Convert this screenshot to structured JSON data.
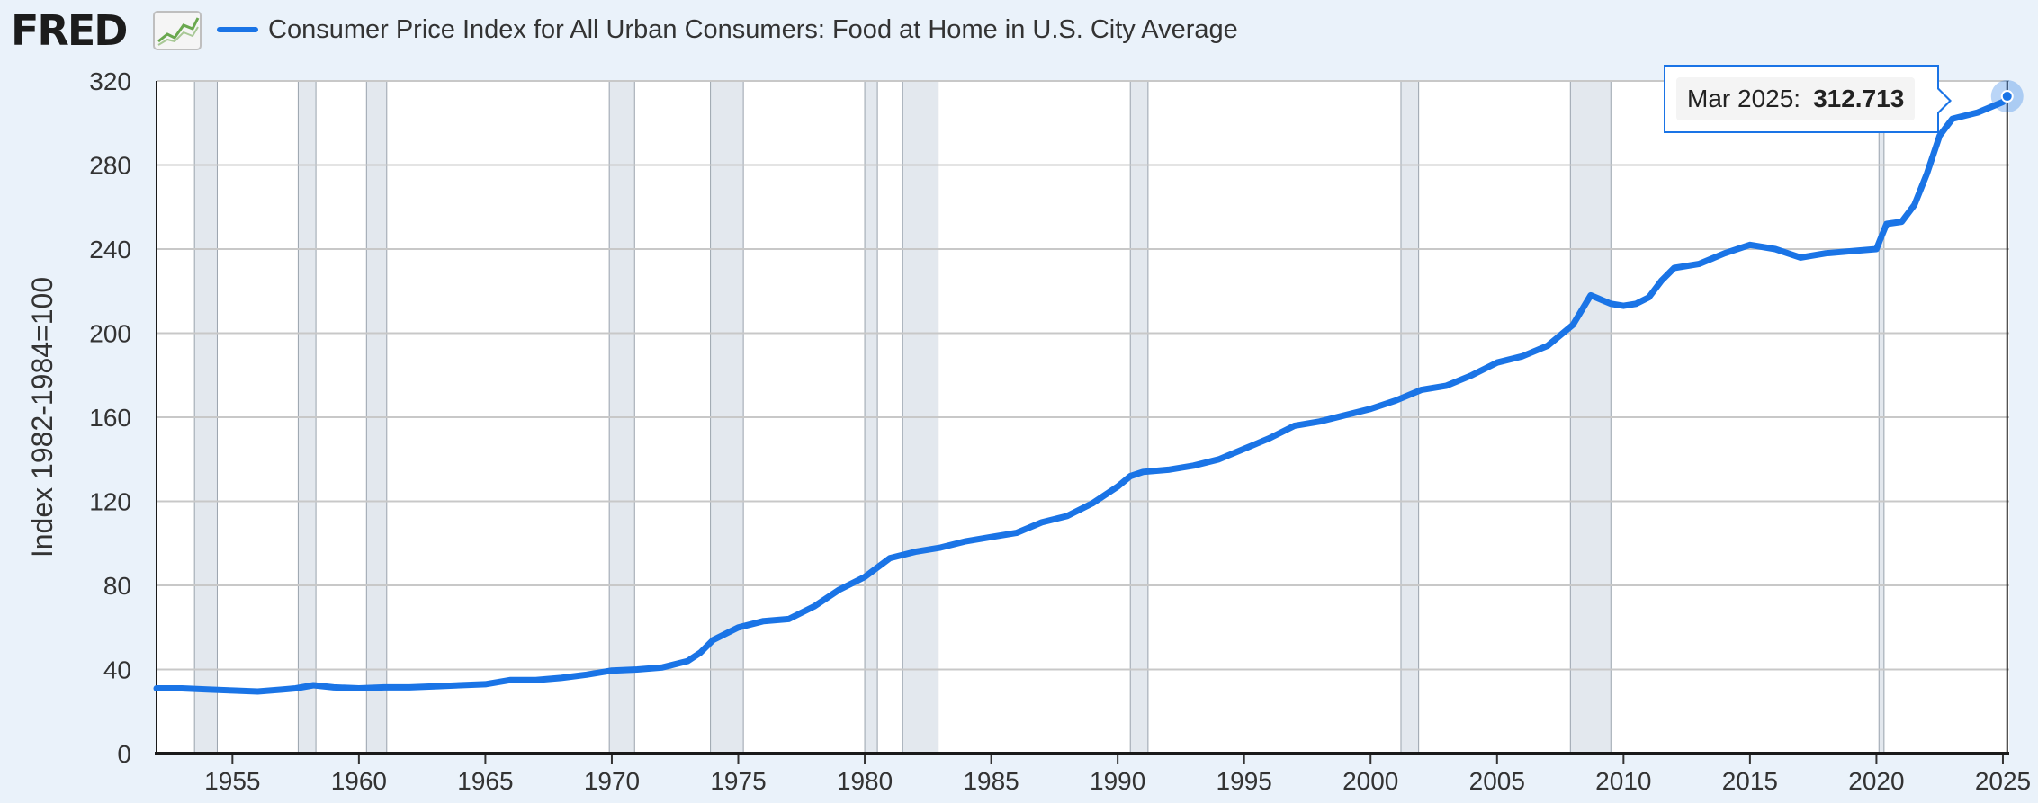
{
  "header": {
    "logo_text": "FRED",
    "logo_mark": "fred-chart-icon",
    "series_title": "Consumer Price Index for All Urban Consumers: Food at Home in U.S. City Average",
    "series_color": "#1a74e6"
  },
  "tooltip": {
    "date": "Mar 2025:",
    "value": "312.713"
  },
  "colors": {
    "line": "#1a74e6",
    "recession": "#e3e8ee",
    "plot_bg": "#ffffff",
    "grid": "#c8c8c8",
    "page_bg": "#eaf2fa"
  },
  "chart_data": {
    "type": "line",
    "title": "Consumer Price Index for All Urban Consumers: Food at Home in U.S. City Average",
    "xlabel": "",
    "ylabel": "Index 1982-1984=100",
    "xlim": [
      1952.0,
      2025.25
    ],
    "ylim": [
      0,
      320
    ],
    "x_ticks": [
      "1955",
      "1960",
      "1965",
      "1970",
      "1975",
      "1980",
      "1985",
      "1990",
      "1995",
      "2000",
      "2005",
      "2010",
      "2015",
      "2020",
      "2025"
    ],
    "y_ticks": [
      "0",
      "40",
      "80",
      "120",
      "160",
      "200",
      "240",
      "280",
      "320"
    ],
    "grid": true,
    "recession_periods": [
      [
        1953.5,
        1954.4
      ],
      [
        1957.6,
        1958.3
      ],
      [
        1960.3,
        1961.1
      ],
      [
        1969.9,
        1970.9
      ],
      [
        1973.9,
        1975.2
      ],
      [
        1980.0,
        1980.5
      ],
      [
        1981.5,
        1982.9
      ],
      [
        1990.5,
        1991.2
      ],
      [
        2001.2,
        2001.9
      ],
      [
        2007.9,
        2009.5
      ],
      [
        2020.1,
        2020.3
      ]
    ],
    "series": [
      {
        "name": "Consumer Price Index for All Urban Consumers: Food at Home in U.S. City Average",
        "x": [
          1952.0,
          1953.0,
          1954.0,
          1955.0,
          1956.0,
          1957.0,
          1957.5,
          1958.2,
          1959.0,
          1960.0,
          1961.0,
          1962.0,
          1963.0,
          1964.0,
          1965.0,
          1966.0,
          1967.0,
          1968.0,
          1969.0,
          1970.0,
          1971.0,
          1972.0,
          1973.0,
          1973.5,
          1974.0,
          1975.0,
          1976.0,
          1977.0,
          1978.0,
          1979.0,
          1980.0,
          1981.0,
          1982.0,
          1983.0,
          1984.0,
          1985.0,
          1986.0,
          1987.0,
          1988.0,
          1989.0,
          1990.0,
          1990.5,
          1991.0,
          1992.0,
          1993.0,
          1994.0,
          1995.0,
          1996.0,
          1997.0,
          1998.0,
          1999.0,
          2000.0,
          2001.0,
          2002.0,
          2003.0,
          2004.0,
          2005.0,
          2006.0,
          2007.0,
          2008.0,
          2008.7,
          2009.5,
          2010.0,
          2010.5,
          2011.0,
          2011.5,
          2012.0,
          2013.0,
          2014.0,
          2015.0,
          2016.0,
          2017.0,
          2018.0,
          2019.0,
          2020.0,
          2020.2,
          2020.4,
          2021.0,
          2021.5,
          2022.0,
          2022.5,
          2023.0,
          2024.0,
          2025.0,
          2025.17
        ],
        "values": [
          31,
          31,
          30.5,
          30,
          29.5,
          30.5,
          31,
          32.5,
          31.5,
          31,
          31.5,
          31.5,
          32,
          32.5,
          33,
          35,
          35,
          36,
          37.5,
          39.5,
          40,
          41,
          44,
          48,
          54,
          60,
          63,
          64,
          70,
          78,
          84,
          93,
          96,
          98,
          101,
          103,
          105,
          110,
          113,
          119,
          127,
          132,
          134,
          135,
          137,
          140,
          145,
          150,
          156,
          158,
          161,
          164,
          168,
          173,
          175,
          180,
          186,
          189,
          194,
          204,
          218,
          214,
          213,
          214,
          217,
          225,
          231,
          233,
          238,
          242,
          240,
          236,
          238,
          239,
          240,
          246,
          252,
          253,
          261,
          276,
          294,
          302,
          305,
          310,
          312.713
        ]
      }
    ],
    "highlight_point": {
      "x": 2025.17,
      "y": 312.713
    }
  }
}
